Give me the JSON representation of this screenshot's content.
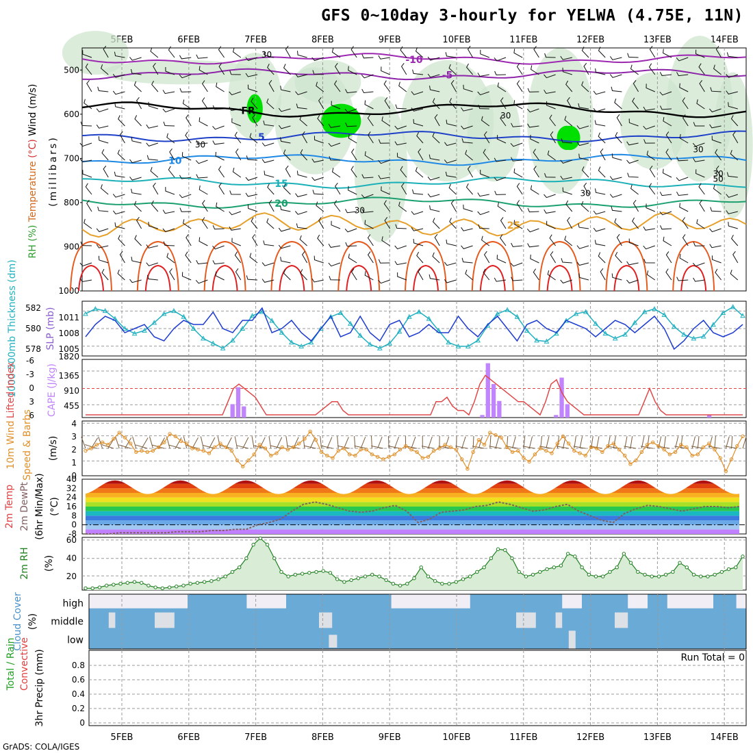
{
  "title": "GFS 0~10day 3-hourly for YELWA (4.75E, 11N)",
  "footer": "GrADS: COLA/IGES",
  "chart_data": {
    "type": "meteogram",
    "dates": [
      "5FEB",
      "6FEB",
      "7FEB",
      "8FEB",
      "9FEB",
      "10FEB",
      "11FEB",
      "12FEB",
      "13FEB",
      "14FEB"
    ],
    "panels": [
      {
        "id": "upper-air",
        "ylabel_parts": [
          {
            "text": "RH (%)",
            "color": "#2e9e2e"
          },
          {
            "text": "Temperature",
            "color": "#d2691e"
          },
          {
            "text": "(°C)",
            "color": "#d32f2f"
          },
          {
            "text": "Wind (m/s)",
            "color": "#000000"
          }
        ],
        "ylabel2": "(millibars)",
        "y_ticks": [
          "500",
          "600",
          "700",
          "800",
          "900",
          "1000"
        ],
        "ylim": [
          450,
          1000
        ],
        "isotherms": [
          {
            "label": "-10",
            "level": 475,
            "color": "#9c27b0"
          },
          {
            "label": "-5",
            "level": 510,
            "color": "#8e24aa"
          },
          {
            "label": "FR",
            "level": 590,
            "color": "#000000"
          },
          {
            "label": "5",
            "level": 650,
            "color": "#1e40c8"
          },
          {
            "label": "10",
            "level": 703,
            "color": "#1e88e5"
          },
          {
            "label": "15",
            "level": 755,
            "color": "#1ab0b8"
          },
          {
            "label": "20",
            "level": 800,
            "color": "#1aa06e"
          },
          {
            "label": "25",
            "level": 850,
            "color": "#e6a02a"
          }
        ],
        "rh_labels": [
          "30",
          "30",
          "30",
          "30",
          "30",
          "30",
          "30",
          "50"
        ]
      },
      {
        "id": "slp-thickness",
        "ylabel_left": "1000-500mb Thickness (dm)",
        "ylabel_right": "SLP (mb)",
        "y_ticks_left": [
          "582",
          "580",
          "578"
        ],
        "y_ticks_right": [
          "1011",
          "1008",
          "1005"
        ],
        "slp": [
          1007,
          1010,
          1012,
          1011,
          1008,
          1009,
          1010,
          1007,
          1006,
          1009,
          1011,
          1010,
          1010,
          1013,
          1009,
          1008,
          1011,
          1011,
          1014,
          1008,
          1009,
          1011,
          1008,
          1006,
          1009,
          1012,
          1007,
          1008,
          1012,
          1008,
          1006,
          1010,
          1011,
          1007,
          1008,
          1010,
          1008,
          1008,
          1012,
          1009,
          1007,
          1010,
          1012,
          1009,
          1006,
          1010,
          1011,
          1009,
          1008,
          1011,
          1010,
          1009,
          1007,
          1009,
          1011,
          1010,
          1008,
          1010,
          1012,
          1009,
          1004,
          1006,
          1009,
          1011,
          1008,
          1007,
          1008,
          1010
        ],
        "thickness": [
          581.5,
          582,
          581.8,
          581,
          580,
          579.5,
          579.8,
          580.6,
          581.5,
          581.8,
          581.2,
          580,
          579,
          578.5,
          578,
          578.8,
          580,
          581.3,
          581.7,
          580.8,
          579.6,
          578.6,
          578.2,
          578.6,
          580,
          581.2,
          581.6,
          580.5,
          579.3,
          578.4,
          578,
          578.5,
          579.7,
          581.2,
          581.7,
          581,
          579.8,
          578.6,
          578.2,
          578.2,
          578.8,
          580.3,
          581.5,
          581.9,
          581.2,
          579.8,
          578.8,
          578.7,
          579.5,
          580.8,
          581.5,
          581.7,
          580.5,
          579.5,
          579,
          579.4,
          580.6,
          581.7,
          582,
          581.4,
          580.2,
          579.4,
          579,
          579.2,
          580.4,
          581.6,
          582.2,
          581.3
        ]
      },
      {
        "id": "cape-li",
        "ylabel_left": "Lifted Index",
        "ylabel_right": "CAPE (J/kg)",
        "y_ticks_left": [
          "-6",
          "-3",
          "0",
          "3",
          "6"
        ],
        "y_ticks_right": [
          "1820",
          "1365",
          "910",
          "455"
        ],
        "cape": [
          0,
          0,
          0,
          0,
          0,
          0,
          0,
          0,
          0,
          0,
          0,
          0,
          0,
          0,
          0,
          0,
          0,
          0,
          0,
          0,
          0,
          0,
          0,
          0,
          0,
          0,
          420,
          950,
          350,
          0,
          0,
          0,
          0,
          0,
          0,
          0,
          0,
          0,
          0,
          0,
          0,
          0,
          0,
          0,
          0,
          0,
          0,
          0,
          0,
          0,
          0,
          0,
          0,
          0,
          0,
          0,
          0,
          0,
          0,
          0,
          0,
          0,
          0,
          0,
          0,
          0,
          0,
          0,
          0,
          0,
          80,
          1700,
          1050,
          520,
          0,
          0,
          0,
          0,
          0,
          0,
          0,
          0,
          0,
          80,
          1250,
          420,
          0,
          0,
          0,
          0,
          0,
          0,
          0,
          0,
          0,
          0,
          0,
          0,
          0,
          0,
          0,
          0,
          0,
          0,
          0,
          0,
          0,
          0,
          0,
          0,
          80,
          0,
          0,
          0,
          0,
          0,
          0
        ],
        "li": [
          6,
          6,
          6,
          6,
          6,
          6,
          6,
          6,
          6,
          6,
          6,
          6,
          6,
          6,
          6,
          6,
          6,
          6,
          6,
          6,
          6,
          6,
          6,
          6,
          6,
          6,
          3,
          0,
          -1,
          0,
          1,
          2,
          4,
          6,
          6,
          6,
          6,
          6,
          6,
          6,
          6,
          6,
          6,
          5,
          4,
          3,
          3,
          5,
          6,
          6,
          6,
          6,
          6,
          6,
          6,
          6,
          6,
          6,
          6,
          6,
          6,
          6,
          6,
          6,
          3,
          3,
          2,
          4,
          5,
          5,
          6,
          3,
          -1,
          -3,
          -2,
          -1,
          0,
          1,
          2,
          3,
          3,
          4,
          5,
          6,
          3,
          -1,
          -2,
          1,
          3,
          4,
          5,
          6,
          6,
          6,
          6,
          6,
          6,
          6,
          6,
          6,
          6,
          6,
          3,
          0,
          3,
          5,
          6,
          6,
          6,
          6,
          6,
          6,
          6,
          6,
          6,
          6,
          6,
          6,
          6,
          6,
          6
        ]
      },
      {
        "id": "wind10m",
        "ylabel_left": "10m Wind",
        "ylabel_mid": "Speed & Barbs",
        "ylabel_units": "(m/s)",
        "y_ticks": [
          "4",
          "3",
          "2",
          "1",
          "0"
        ],
        "speed": [
          1.9,
          2.1,
          2.4,
          2.6,
          2.4,
          2.9,
          3.4,
          3.0,
          2.5,
          1.8,
          1.9,
          1.8,
          1.9,
          2.2,
          2.6,
          3.3,
          3.1,
          2.7,
          2.5,
          2.1,
          2.0,
          1.9,
          1.7,
          2.2,
          2.5,
          2.2,
          1.9,
          1.1,
          0.6,
          1.1,
          1.6,
          2.4,
          2.1,
          1.5,
          1.7,
          2.2,
          2.0,
          2.2,
          2.5,
          2.9,
          3.5,
          2.8,
          1.8,
          1.5,
          1.3,
          1.9,
          2.1,
          1.6,
          1.5,
          2.0,
          2.0,
          1.6,
          1.4,
          1.2,
          1.4,
          1.6,
          2.0,
          2.3,
          2.0,
          1.8,
          1.3,
          1.4,
          1.9,
          2.1,
          2.4,
          2.2,
          2.0,
          1.2,
          0.4,
          1.8,
          2.8,
          2.4,
          3.4,
          3.2,
          3.0,
          2.2,
          1.8,
          1.9,
          1.3,
          1.0,
          1.6,
          2.1,
          1.9,
          1.7,
          2.5,
          3.1,
          2.5,
          1.9,
          1.7,
          1.5,
          2.2,
          2.1,
          1.8,
          2.3,
          2.5,
          2.0,
          1.5,
          0.8,
          1.1,
          1.8,
          2.4,
          2.6,
          2.3,
          2.0,
          1.6,
          1.8,
          2.4,
          2.2,
          1.5,
          1.6,
          2.2,
          2.5,
          2.0,
          1.3,
          0.2,
          1.2,
          2.3,
          3.1
        ]
      },
      {
        "id": "temp2m",
        "ylabel_left": "2m Temp",
        "ylabel_mid": "2m DewPt",
        "ylabel_mid2": "(6hr Min/Max)",
        "ylabel_units": "(°C)",
        "y_ticks": [
          "40",
          "32",
          "24",
          "16",
          "8",
          "0",
          "-8"
        ],
        "ylim": [
          -8,
          40
        ],
        "tmin": 27,
        "tmax": 39,
        "dewpoint": [
          -8,
          -8,
          -8,
          -7,
          -7,
          -7,
          -7,
          -7,
          -6,
          -6,
          -6,
          -5,
          -5,
          -4,
          -4,
          0,
          2,
          5,
          12,
          18,
          20,
          18,
          15,
          12,
          11,
          12,
          15,
          17,
          12,
          2,
          5,
          11,
          12,
          13,
          16,
          17,
          20,
          18,
          15,
          12,
          13,
          16,
          18,
          12,
          8,
          4,
          2,
          10,
          14,
          17,
          16,
          14,
          12,
          14,
          16,
          16,
          15,
          16
        ]
      },
      {
        "id": "rh2m",
        "ylabel": "2m RH",
        "ylabel_units": "(%)",
        "y_ticks": [
          "60",
          "40",
          "20"
        ],
        "ylim": [
          5,
          63
        ],
        "rh": [
          7,
          7,
          8,
          10,
          11,
          12,
          13,
          14,
          13,
          10,
          8,
          7,
          8,
          9,
          10,
          12,
          13,
          14,
          15,
          17,
          20,
          25,
          30,
          40,
          55,
          62,
          55,
          40,
          25,
          20,
          22,
          23,
          24,
          25,
          26,
          24,
          17,
          14,
          16,
          18,
          20,
          22,
          20,
          16,
          12,
          10,
          12,
          18,
          30,
          20,
          15,
          12,
          12,
          14,
          17,
          20,
          25,
          30,
          40,
          50,
          49,
          40,
          25,
          20,
          22,
          25,
          28,
          30,
          32,
          45,
          42,
          30,
          22,
          20,
          20,
          25,
          30,
          45,
          35,
          25,
          22,
          20,
          20,
          22,
          25,
          35,
          30,
          22,
          20,
          20,
          22,
          25,
          28,
          30,
          42
        ]
      },
      {
        "id": "cloud",
        "ylabel": "Cloud Cover",
        "ylabel_units": "(%)",
        "layers": [
          "high",
          "middle",
          "low"
        ]
      },
      {
        "id": "precip",
        "ylabel_left": "Total / Rain",
        "ylabel_left2": "Convective",
        "ylabel_mid": "3hr Precip (mm)",
        "y_ticks": [
          "0.8",
          "0.6",
          "0.4",
          "0.2",
          "0"
        ],
        "run_total": "Run Total = 0"
      }
    ]
  }
}
